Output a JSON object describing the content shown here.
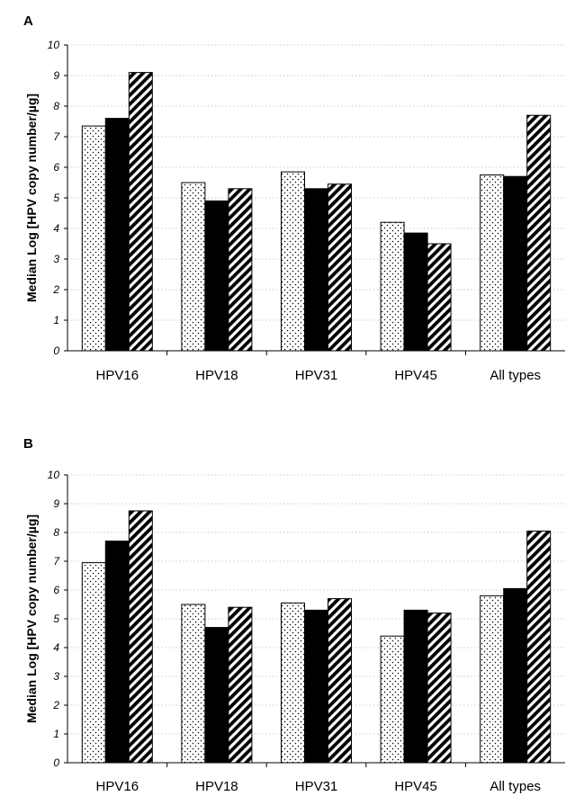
{
  "chart_data": [
    {
      "type": "bar",
      "panel": "A",
      "categories": [
        "HPV16",
        "HPV18",
        "HPV31",
        "HPV45",
        "All types"
      ],
      "ylabel": "Median Log [HPV copy number/µg]",
      "ylim": [
        0,
        10
      ],
      "yticks": [
        "0",
        "1",
        "2",
        "3",
        "4",
        "5",
        "6",
        "7",
        "8",
        "9",
        "10"
      ],
      "grid": true,
      "series": [
        {
          "pattern": "dotted",
          "values": [
            7.35,
            5.5,
            5.85,
            4.2,
            5.75
          ]
        },
        {
          "pattern": "solid-black",
          "values": [
            7.6,
            4.9,
            5.3,
            3.85,
            5.7
          ]
        },
        {
          "pattern": "hatched",
          "values": [
            9.1,
            5.3,
            5.45,
            3.5,
            7.7
          ]
        }
      ]
    },
    {
      "type": "bar",
      "panel": "B",
      "categories": [
        "HPV16",
        "HPV18",
        "HPV31",
        "HPV45",
        "All types"
      ],
      "ylabel": "Median Log [HPV copy number/µg]",
      "ylim": [
        0,
        10
      ],
      "yticks": [
        "0",
        "1",
        "2",
        "3",
        "4",
        "5",
        "6",
        "7",
        "8",
        "9",
        "10"
      ],
      "grid": true,
      "series": [
        {
          "pattern": "dotted",
          "values": [
            6.95,
            5.5,
            5.55,
            4.4,
            5.8
          ]
        },
        {
          "pattern": "solid-black",
          "values": [
            7.7,
            4.7,
            5.3,
            5.3,
            6.05
          ]
        },
        {
          "pattern": "hatched",
          "values": [
            8.75,
            5.4,
            5.7,
            5.2,
            8.05
          ]
        }
      ]
    }
  ]
}
